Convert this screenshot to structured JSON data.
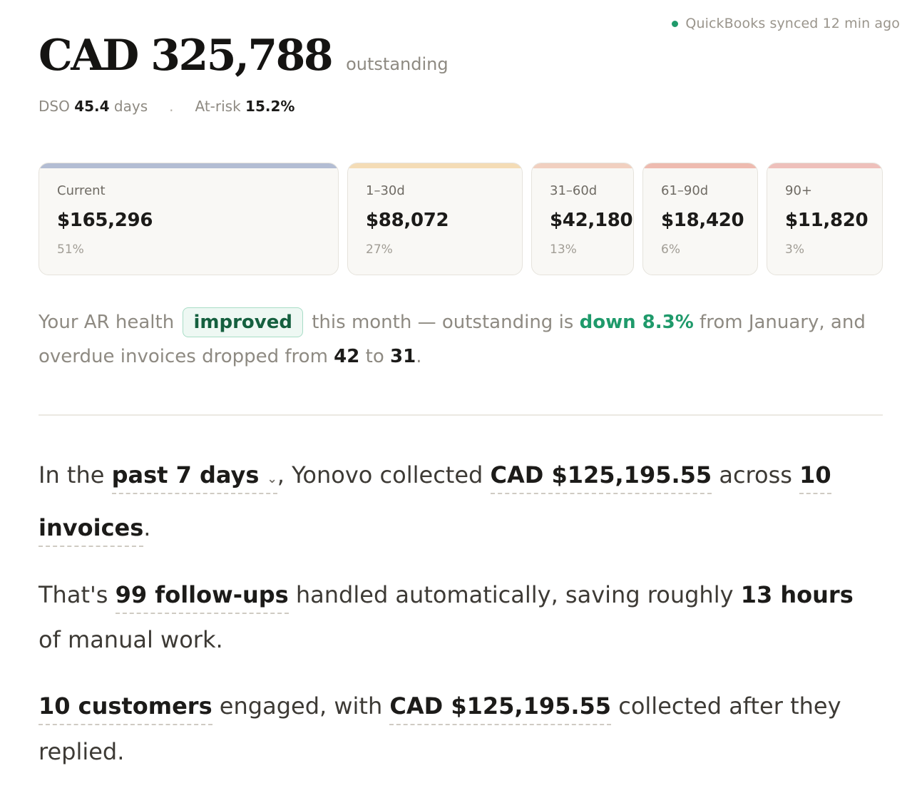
{
  "sync_status": "QuickBooks synced 12 min ago",
  "header": {
    "total_amount": "CAD 325,788",
    "total_label": "outstanding",
    "dso_label": "DSO",
    "dso_value": "45.4",
    "dso_unit": "days",
    "separator": ".",
    "at_risk_label": "At-risk",
    "at_risk_value": "15.2%"
  },
  "buckets": [
    {
      "label": "Current",
      "amount": "$165,296",
      "share": "51%",
      "color": "#b3bdd3"
    },
    {
      "label": "1–30d",
      "amount": "$88,072",
      "share": "27%",
      "color": "#f4dcb6"
    },
    {
      "label": "31–60d",
      "amount": "$42,180",
      "share": "13%",
      "color": "#f1d0c0"
    },
    {
      "label": "61–90d",
      "amount": "$18,420",
      "share": "6%",
      "color": "#eebbb0"
    },
    {
      "label": "90+",
      "amount": "$11,820",
      "share": "3%",
      "color": "#eec0bb"
    }
  ],
  "health": {
    "t1": "Your AR health",
    "status_pill": "improved",
    "t2": "this month — outstanding is",
    "change": "down 8.3%",
    "t3": "from January, and overdue invoices dropped from",
    "from": "42",
    "t4": "to",
    "to": "31",
    "t5": "."
  },
  "summary": {
    "p1_a": "In the",
    "period": "past 7 days",
    "period_caret": "⌄",
    "p1_b": ", Yonovo collected",
    "collected": "CAD $125,195.55",
    "p1_c": "across",
    "invoices": "10 invoices",
    "p1_d": ".",
    "p2_a": "That's",
    "followups": "99 follow-ups",
    "p2_b": "handled automatically, saving roughly",
    "hours": "13 hours",
    "p2_c": "of manual work.",
    "customers": "10 customers",
    "p3_a": "engaged, with",
    "collected_after": "CAD $125,195.55",
    "p3_b": "collected after they replied."
  }
}
